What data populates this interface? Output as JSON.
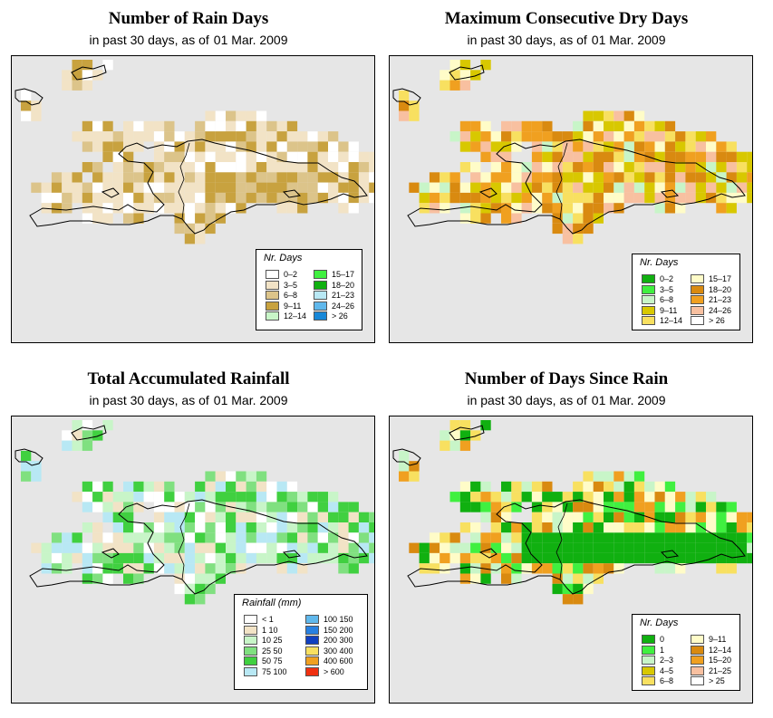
{
  "panels": [
    {
      "id": "rain-days",
      "title": "Number of Rain Days",
      "subtitle_prefix": "in past 30 days, as of",
      "date": "01 Mar. 2009",
      "legend": {
        "title": "Nr. Days",
        "items": [
          {
            "label": "0–2",
            "color": "#ffffff"
          },
          {
            "label": "3–5",
            "color": "#f2e3c6"
          },
          {
            "label": "6–8",
            "color": "#dcc48a"
          },
          {
            "label": "9–11",
            "color": "#c8a23f"
          },
          {
            "label": "12–14",
            "color": "#c8f5c8"
          },
          {
            "label": "15–17",
            "color": "#40f040"
          },
          {
            "label": "18–20",
            "color": "#10b010"
          },
          {
            "label": "21–23",
            "color": "#b8e8f4"
          },
          {
            "label": "24–26",
            "color": "#60b8ec"
          },
          {
            "label": "> 26",
            "color": "#1888d8"
          }
        ]
      }
    },
    {
      "id": "max-dry-days",
      "title": "Maximum Consecutive Dry Days",
      "subtitle_prefix": "in past 30 days, as of",
      "date": "01 Mar. 2009",
      "legend": {
        "title": "Nr. Days",
        "items": [
          {
            "label": "0–2",
            "color": "#10b010"
          },
          {
            "label": "3–5",
            "color": "#40f040"
          },
          {
            "label": "6–8",
            "color": "#c8f5c8"
          },
          {
            "label": "9–11",
            "color": "#d8c800"
          },
          {
            "label": "12–14",
            "color": "#f8e060"
          },
          {
            "label": "15–17",
            "color": "#fffcc8"
          },
          {
            "label": "18–20",
            "color": "#d98a10"
          },
          {
            "label": "21–23",
            "color": "#f0a020"
          },
          {
            "label": "24–26",
            "color": "#f8c0a0"
          },
          {
            "label": "> 26",
            "color": "#ffffff"
          }
        ]
      }
    },
    {
      "id": "total-rainfall",
      "title": "Total Accumulated Rainfall",
      "subtitle_prefix": "in past 30 days, as of",
      "date": "01 Mar. 2009",
      "legend": {
        "title": "Rainfall (mm)",
        "items": [
          {
            "label": "< 1",
            "color": "#ffffff"
          },
          {
            "label": "1    10",
            "color": "#f2e3c6"
          },
          {
            "label": "10    25",
            "color": "#c8f5c8"
          },
          {
            "label": "25    50",
            "color": "#80e080"
          },
          {
            "label": "50    75",
            "color": "#40d040"
          },
          {
            "label": "75  100",
            "color": "#b8e8f4"
          },
          {
            "label": "100  150",
            "color": "#60b8ec"
          },
          {
            "label": "150  200",
            "color": "#2880e0"
          },
          {
            "label": "200  300",
            "color": "#1040c0"
          },
          {
            "label": "300  400",
            "color": "#f8e060"
          },
          {
            "label": "400  600",
            "color": "#f0a020"
          },
          {
            "label": "> 600",
            "color": "#f03010"
          }
        ]
      }
    },
    {
      "id": "days-since-rain",
      "title": "Number of Days Since Rain",
      "subtitle_prefix": "in past 30 days, as of",
      "date": "01 Mar. 2009",
      "legend": {
        "title": "Nr. Days",
        "items": [
          {
            "label": "0",
            "color": "#10b010"
          },
          {
            "label": "1",
            "color": "#40f040"
          },
          {
            "label": "2–3",
            "color": "#c8f5c8"
          },
          {
            "label": "4–5",
            "color": "#d8c800"
          },
          {
            "label": "6–8",
            "color": "#f8e060"
          },
          {
            "label": "9–11",
            "color": "#fffcc8"
          },
          {
            "label": "12–14",
            "color": "#d98a10"
          },
          {
            "label": "15–20",
            "color": "#f0a020"
          },
          {
            "label": "21–25",
            "color": "#f8c0a0"
          },
          {
            "label": "> 25",
            "color": "#ffffff"
          }
        ]
      }
    }
  ]
}
